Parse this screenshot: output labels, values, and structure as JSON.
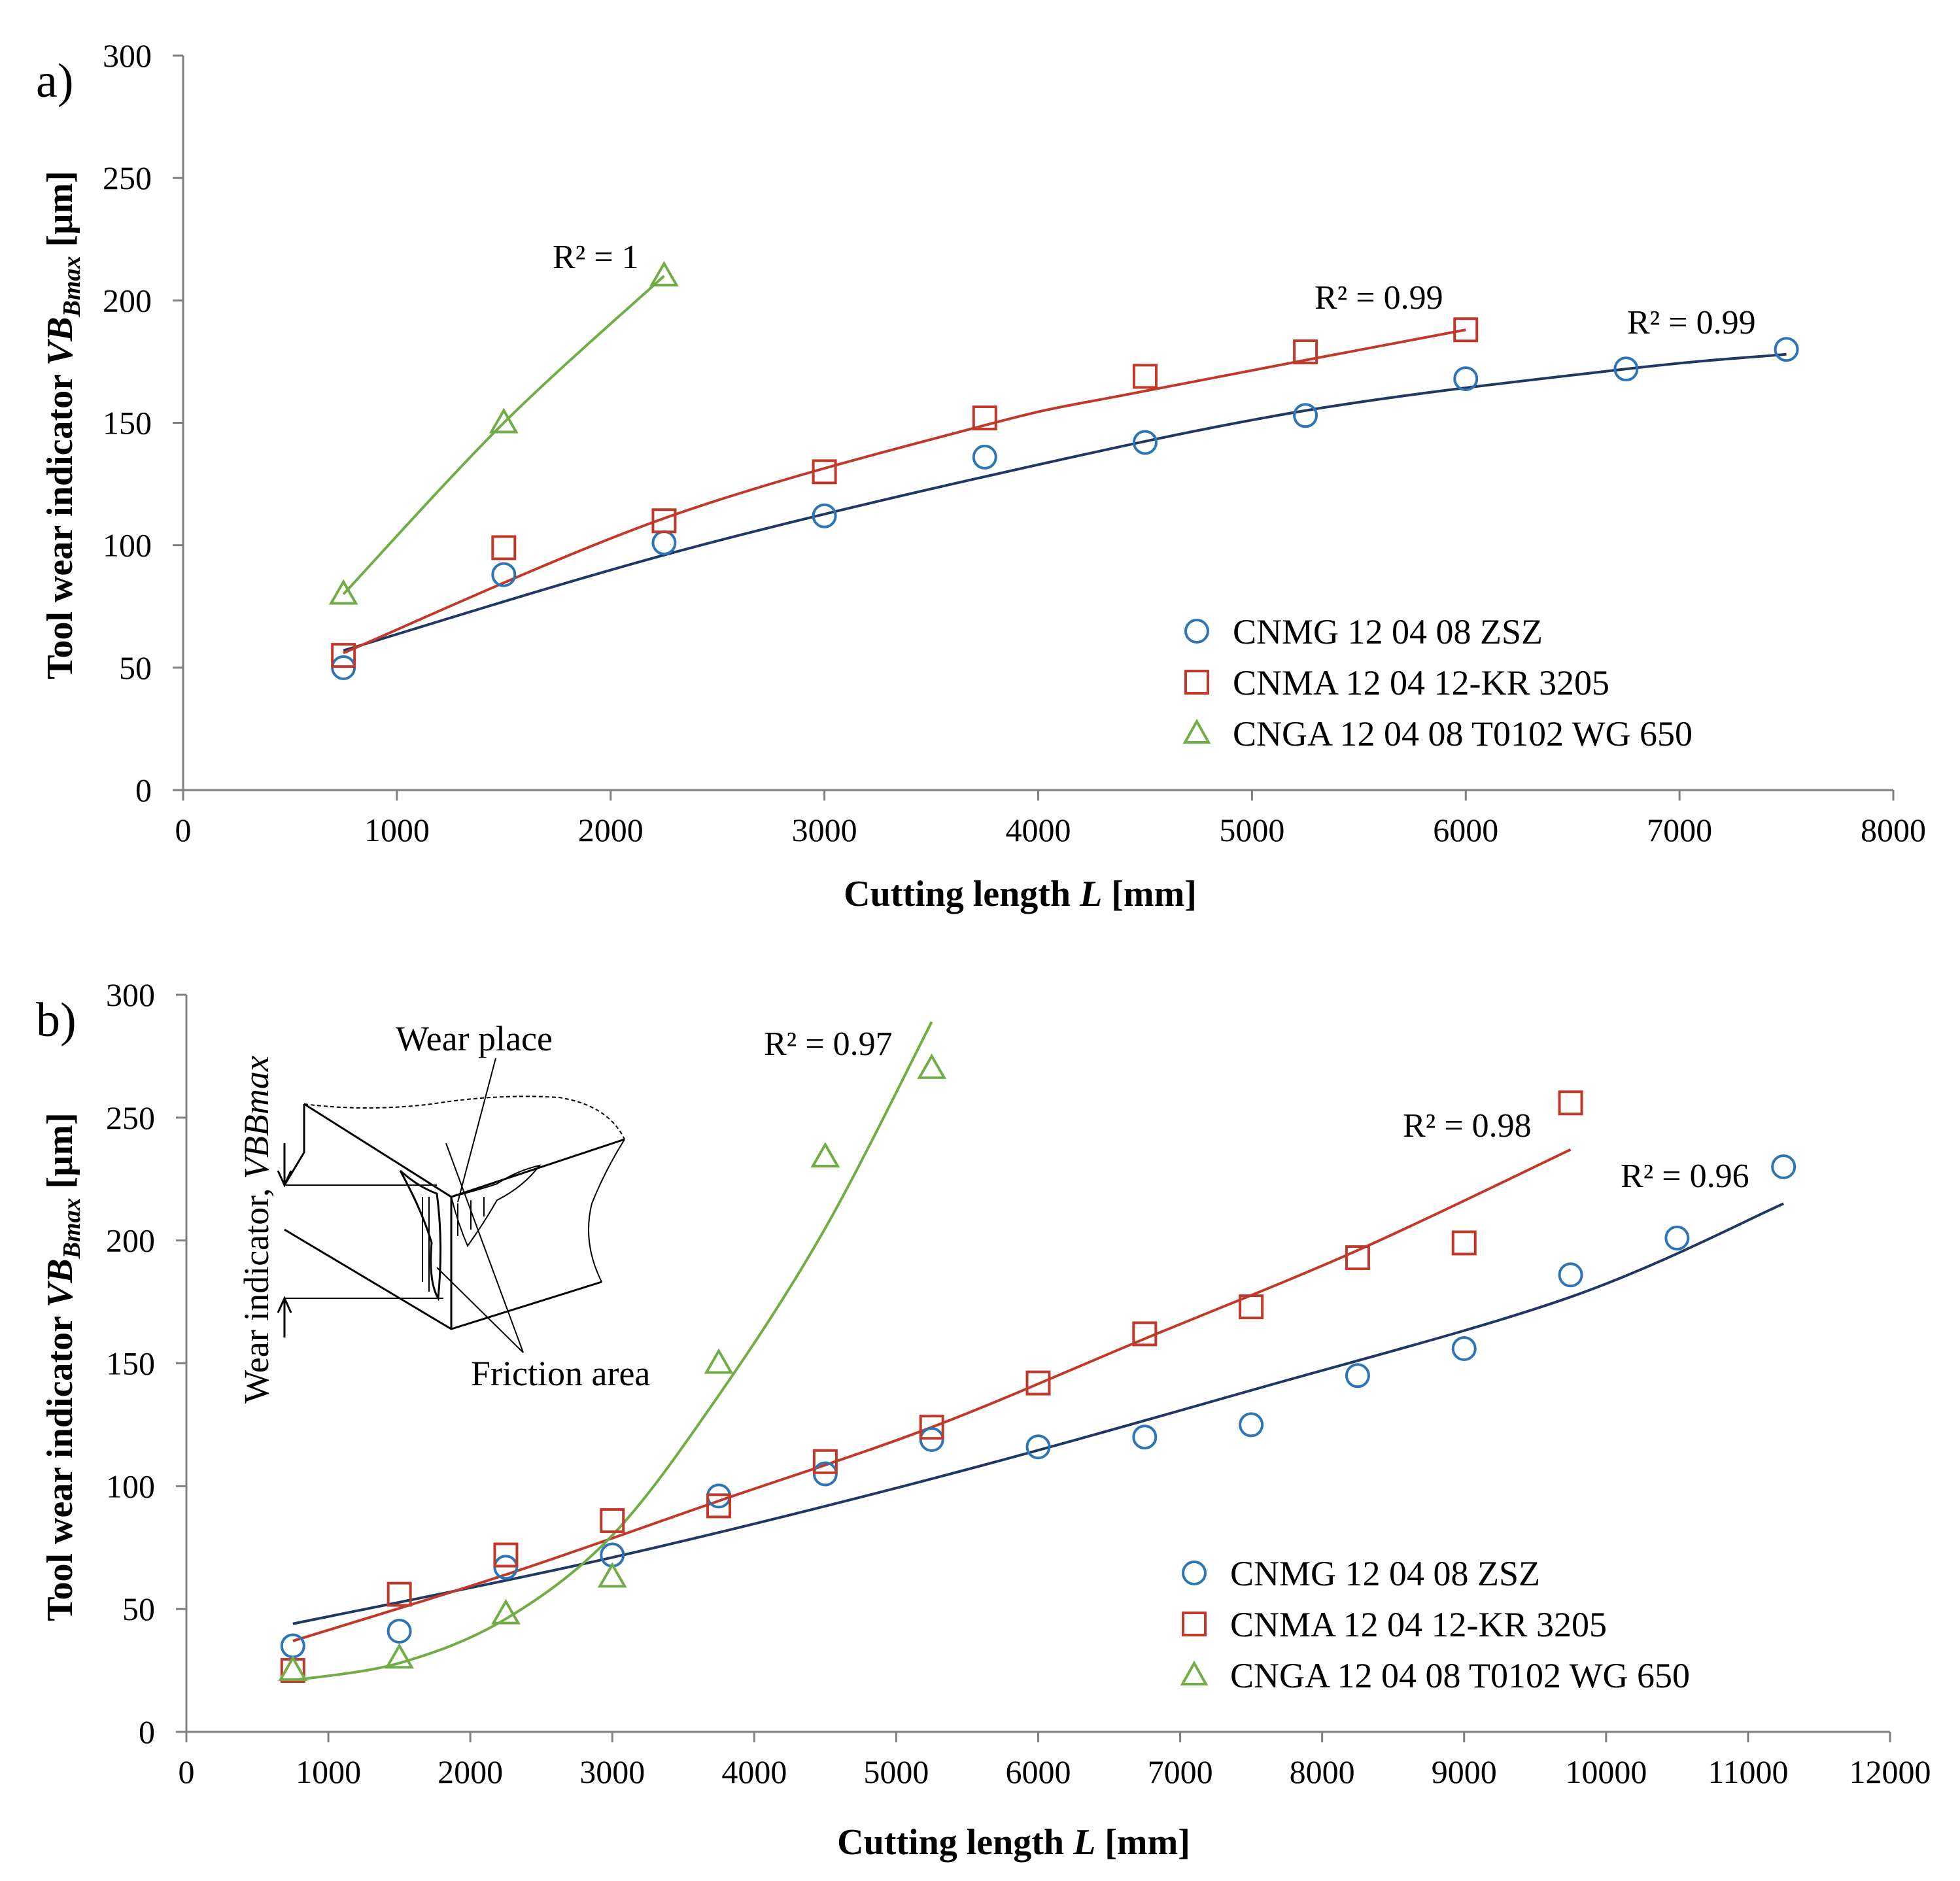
{
  "colors": {
    "blue_marker": "#2e75b6",
    "blue_fit": "#1f3864",
    "red": "#c0392b",
    "green": "#70ad47",
    "axis": "#7f7f7f"
  },
  "chart_data": [
    {
      "panel_label": "a)",
      "type": "scatter",
      "xlabel_prefix": "Cutting length ",
      "xlabel_var": "L",
      "xlabel_suffix": " [mm]",
      "ylabel_prefix": "Tool wear indicator ",
      "ylabel_var": "VB",
      "ylabel_sub": "Bmax",
      "ylabel_suffix": " [µm]",
      "xlim": [
        0,
        8000
      ],
      "ylim": [
        0,
        300
      ],
      "xticks": [
        0,
        1000,
        2000,
        3000,
        4000,
        5000,
        6000,
        7000,
        8000
      ],
      "yticks": [
        0,
        50,
        100,
        150,
        200,
        250,
        300
      ],
      "series": [
        {
          "name": "CNMG 12 04 08 ZSZ",
          "marker": "circle",
          "color_key": "blue_marker",
          "fit_color_key": "blue_fit",
          "x": [
            750,
            1500,
            2250,
            3000,
            3750,
            4500,
            5250,
            6000,
            6750,
            7500
          ],
          "y": [
            50,
            88,
            101,
            112,
            136,
            142,
            153,
            168,
            172,
            180
          ],
          "r2": "R² = 0.99",
          "fit_range": [
            750,
            7500
          ],
          "fit_points": [
            [
              750,
              57
            ],
            [
              2250,
              96
            ],
            [
              3750,
              128
            ],
            [
              5250,
              155
            ],
            [
              6750,
              172
            ],
            [
              7500,
              178
            ]
          ]
        },
        {
          "name": "CNMA 12 04 12-KR 3205",
          "marker": "square",
          "color_key": "red",
          "fit_color_key": "red",
          "x": [
            750,
            1500,
            2250,
            3000,
            3750,
            4500,
            5250,
            6000
          ],
          "y": [
            55,
            99,
            110,
            130,
            152,
            169,
            179,
            188
          ],
          "r2": "R² = 0.99",
          "fit_range": [
            750,
            6000
          ],
          "fit_points": [
            [
              750,
              56
            ],
            [
              2250,
              111
            ],
            [
              3750,
              149
            ],
            [
              4500,
              163
            ],
            [
              6000,
              188
            ]
          ]
        },
        {
          "name": "CNGA 12 04 08 T0102 WG 650",
          "marker": "triangle",
          "color_key": "green",
          "fit_color_key": "green",
          "x": [
            750,
            1500,
            2250
          ],
          "y": [
            80,
            150,
            210
          ],
          "r2": "R² = 1",
          "fit_range": [
            750,
            2250
          ],
          "fit_points": [
            [
              750,
              80
            ],
            [
              1500,
              150
            ],
            [
              2250,
              210
            ]
          ]
        }
      ]
    },
    {
      "panel_label": "b)",
      "type": "scatter",
      "xlabel_prefix": "Cutting length ",
      "xlabel_var": "L",
      "xlabel_suffix": " [mm]",
      "ylabel_prefix": "Tool wear indicator ",
      "ylabel_var": "VB",
      "ylabel_sub": "Bmax",
      "ylabel_suffix": " [µm]",
      "xlim": [
        0,
        12000
      ],
      "ylim": [
        0,
        300
      ],
      "xticks": [
        0,
        1000,
        2000,
        3000,
        4000,
        5000,
        6000,
        7000,
        8000,
        9000,
        10000,
        11000,
        12000
      ],
      "yticks": [
        0,
        50,
        100,
        150,
        200,
        250,
        300
      ],
      "series": [
        {
          "name": "CNMG 12 04 08 ZSZ",
          "marker": "circle",
          "color_key": "blue_marker",
          "fit_color_key": "blue_fit",
          "x": [
            750,
            1500,
            2250,
            3000,
            3750,
            4500,
            5250,
            6000,
            6750,
            7500,
            8250,
            9000,
            9750,
            10500,
            11250
          ],
          "y": [
            35,
            41,
            67,
            72,
            96,
            105,
            119,
            116,
            120,
            125,
            145,
            156,
            186,
            201,
            230
          ],
          "r2": "R² = 0.96",
          "fit_range": [
            750,
            11250
          ],
          "fit_points": [
            [
              750,
              44
            ],
            [
              3000,
              71
            ],
            [
              5250,
              103
            ],
            [
              7500,
              139
            ],
            [
              9750,
              177
            ],
            [
              11250,
              215
            ]
          ]
        },
        {
          "name": "CNMA 12 04 12-KR 3205",
          "marker": "square",
          "color_key": "red",
          "fit_color_key": "red",
          "x": [
            750,
            1500,
            2250,
            3000,
            3750,
            4500,
            5250,
            6000,
            6750,
            7500,
            8250,
            9000,
            9750
          ],
          "y": [
            25,
            56,
            72,
            86,
            92,
            110,
            124,
            142,
            162,
            173,
            193,
            199,
            256
          ],
          "r2": "R² = 0.98",
          "fit_range": [
            750,
            9750
          ],
          "fit_points": [
            [
              750,
              37
            ],
            [
              2250,
              64
            ],
            [
              3750,
              94
            ],
            [
              5250,
              124
            ],
            [
              6750,
              160
            ],
            [
              8250,
              196
            ],
            [
              9750,
              237
            ]
          ]
        },
        {
          "name": "CNGA 12 04 08 T0102 WG 650",
          "marker": "triangle",
          "color_key": "green",
          "fit_color_key": "green",
          "x": [
            750,
            1500,
            2250,
            3000,
            3750,
            4500,
            5250
          ],
          "y": [
            25,
            30,
            48,
            63,
            150,
            234,
            270
          ],
          "r2": "R² = 0.97",
          "fit_range": [
            750,
            5250
          ],
          "fit_points": [
            [
              750,
              21
            ],
            [
              1500,
              28
            ],
            [
              2250,
              46
            ],
            [
              3000,
              80
            ],
            [
              3750,
              137
            ],
            [
              4500,
              205
            ],
            [
              5250,
              289
            ]
          ]
        }
      ]
    }
  ],
  "inset": {
    "wear_place_label": "Wear place",
    "friction_area_label": "Friction area",
    "vertical_label_prefix": "Wear indicator, ",
    "vertical_label_var": "VBBmax"
  }
}
